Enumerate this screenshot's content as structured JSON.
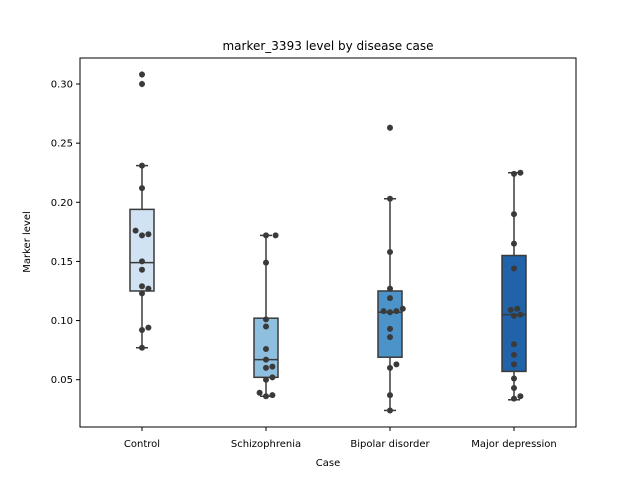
{
  "chart_data": {
    "type": "box",
    "title": "marker_3393 level by disease case",
    "xlabel": "Case",
    "ylabel": "Marker level",
    "ylim": [
      0.01,
      0.322
    ],
    "yticks": [
      0.05,
      0.1,
      0.15,
      0.2,
      0.25,
      0.3
    ],
    "ytick_labels": [
      "0.05",
      "0.10",
      "0.15",
      "0.20",
      "0.25",
      "0.30"
    ],
    "categories": [
      "Control",
      "Schizophrenia",
      "Bipolar disorder",
      "Major depression"
    ],
    "colors": [
      "#d1e2f2",
      "#8fbfde",
      "#4b93c8",
      "#2063a8"
    ],
    "boxes": [
      {
        "q1": 0.125,
        "median": 0.149,
        "q3": 0.194,
        "whisker_low": 0.077,
        "whisker_high": 0.231,
        "outliers": [
          0.308,
          0.3
        ]
      },
      {
        "q1": 0.052,
        "median": 0.067,
        "q3": 0.102,
        "whisker_low": 0.036,
        "whisker_high": 0.172,
        "outliers": []
      },
      {
        "q1": 0.069,
        "median": 0.107,
        "q3": 0.125,
        "whisker_low": 0.024,
        "whisker_high": 0.203,
        "outliers": [
          0.263
        ]
      },
      {
        "q1": 0.057,
        "median": 0.105,
        "q3": 0.155,
        "whisker_low": 0.033,
        "whisker_high": 0.225,
        "outliers": []
      }
    ],
    "points": [
      [
        0.308,
        0.3,
        0.231,
        0.212,
        0.176,
        0.173,
        0.172,
        0.15,
        0.143,
        0.129,
        0.127,
        0.123,
        0.094,
        0.092,
        0.077
      ],
      [
        0.172,
        0.172,
        0.149,
        0.101,
        0.095,
        0.076,
        0.067,
        0.061,
        0.06,
        0.052,
        0.05,
        0.039,
        0.037,
        0.036
      ],
      [
        0.263,
        0.203,
        0.158,
        0.127,
        0.119,
        0.11,
        0.108,
        0.108,
        0.107,
        0.093,
        0.086,
        0.063,
        0.06,
        0.037,
        0.024
      ],
      [
        0.225,
        0.224,
        0.19,
        0.165,
        0.144,
        0.11,
        0.109,
        0.105,
        0.104,
        0.08,
        0.071,
        0.063,
        0.051,
        0.043,
        0.036,
        0.034
      ]
    ]
  }
}
